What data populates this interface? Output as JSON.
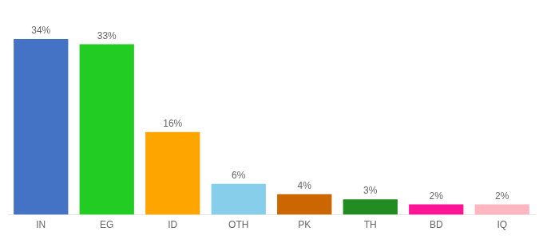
{
  "chart_data": {
    "type": "bar",
    "categories": [
      "IN",
      "EG",
      "ID",
      "OTH",
      "PK",
      "TH",
      "BD",
      "IQ"
    ],
    "values": [
      34,
      33,
      16,
      6,
      4,
      3,
      2,
      2
    ],
    "value_labels": [
      "34%",
      "33%",
      "16%",
      "6%",
      "4%",
      "3%",
      "2%",
      "2%"
    ],
    "colors": [
      "#4472C4",
      "#22CC22",
      "#FFA500",
      "#87CEEB",
      "#CC6600",
      "#228B22",
      "#FF1493",
      "#FFB6C1"
    ],
    "ylim": [
      0,
      40
    ],
    "grid": false,
    "data_labels": true,
    "tick_labels": "x"
  }
}
